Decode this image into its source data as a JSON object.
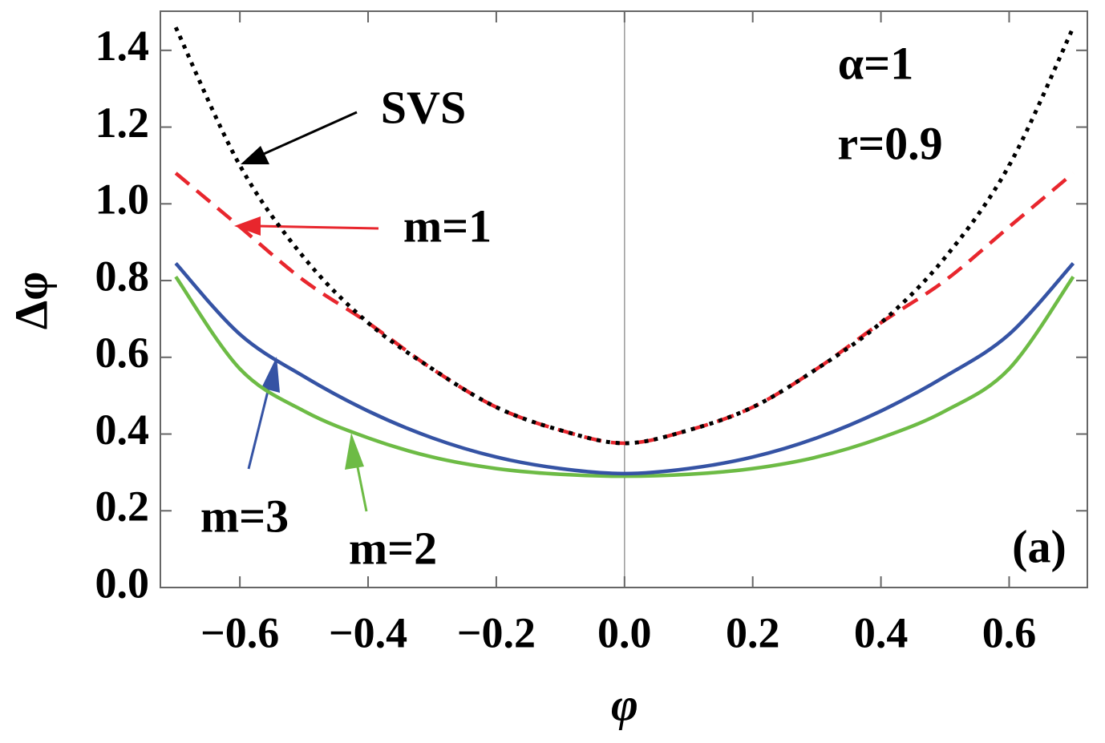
{
  "chart_data": {
    "type": "line",
    "x_label": "φ",
    "y_label": "Δφ",
    "x": [
      -0.7,
      -0.6,
      -0.5,
      -0.4,
      -0.3,
      -0.2,
      -0.1,
      0,
      0.1,
      0.2,
      0.3,
      0.4,
      0.5,
      0.6,
      0.7
    ],
    "series": [
      {
        "name": "SVS",
        "color": "#000000",
        "style": "dotted",
        "values": [
          1.46,
          1.1,
          0.86,
          0.69,
          0.57,
          0.47,
          0.41,
          0.376,
          0.41,
          0.47,
          0.57,
          0.69,
          0.86,
          1.1,
          1.46
        ]
      },
      {
        "name": "m=1",
        "color": "#e8262d",
        "style": "dashed",
        "values": [
          1.08,
          0.94,
          0.8,
          0.69,
          0.57,
          0.47,
          0.41,
          0.376,
          0.41,
          0.47,
          0.57,
          0.69,
          0.8,
          0.94,
          1.08
        ]
      },
      {
        "name": "m=3",
        "color": "#3553a4",
        "style": "solid",
        "values": [
          0.845,
          0.66,
          0.55,
          0.46,
          0.39,
          0.34,
          0.31,
          0.297,
          0.31,
          0.34,
          0.39,
          0.46,
          0.55,
          0.66,
          0.845
        ]
      },
      {
        "name": "m=2",
        "color": "#6dbb45",
        "style": "solid",
        "values": [
          0.81,
          0.57,
          0.46,
          0.39,
          0.34,
          0.31,
          0.295,
          0.29,
          0.295,
          0.31,
          0.34,
          0.39,
          0.46,
          0.57,
          0.81
        ]
      }
    ],
    "annotations": [
      "α=1",
      "r=0.9",
      "(a)"
    ],
    "xlim": [
      -0.724,
      0.722
    ],
    "ylim": [
      0,
      1.502
    ],
    "xticks": [
      {
        "value": -0.6,
        "label": "−0.6"
      },
      {
        "value": -0.4,
        "label": "−0.4"
      },
      {
        "value": -0.2,
        "label": "−0.2"
      },
      {
        "value": 0,
        "label": "0.0"
      },
      0.2,
      0.4,
      0.6
    ],
    "yticks": [
      {
        "value": 0,
        "label": "0.0"
      },
      0.2,
      0.4,
      0.6,
      0.8,
      {
        "value": 1,
        "label": "1.0"
      },
      1.2,
      1.4
    ]
  }
}
